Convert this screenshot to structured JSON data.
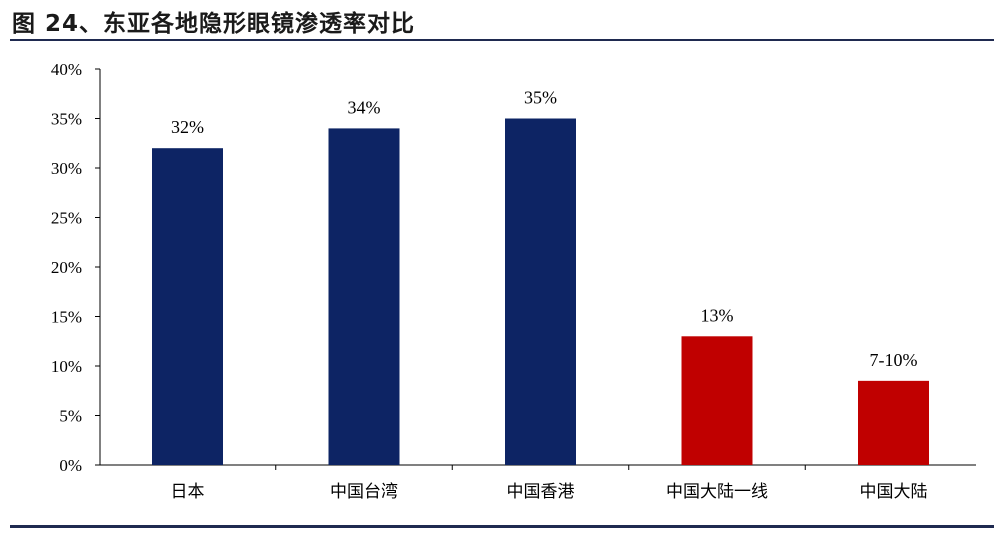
{
  "title": "图 24、东亚各地隐形眼镜渗透率对比",
  "chart_data": {
    "type": "bar",
    "title": "",
    "xlabel": "",
    "ylabel": "",
    "ylim": [
      0,
      40
    ],
    "y_ticks": [
      "0%",
      "5%",
      "10%",
      "15%",
      "20%",
      "25%",
      "30%",
      "35%",
      "40%"
    ],
    "categories": [
      "日本",
      "中国台湾",
      "中国香港",
      "中国大陆一线",
      "中国大陆"
    ],
    "values": [
      32,
      34,
      35,
      13,
      8.5
    ],
    "data_labels": [
      "32%",
      "34%",
      "35%",
      "13%",
      "7-10%"
    ],
    "bar_colors": [
      "#0d2464",
      "#0d2464",
      "#0d2464",
      "#c00000",
      "#c00000"
    ],
    "grid": false,
    "legend": "none"
  }
}
